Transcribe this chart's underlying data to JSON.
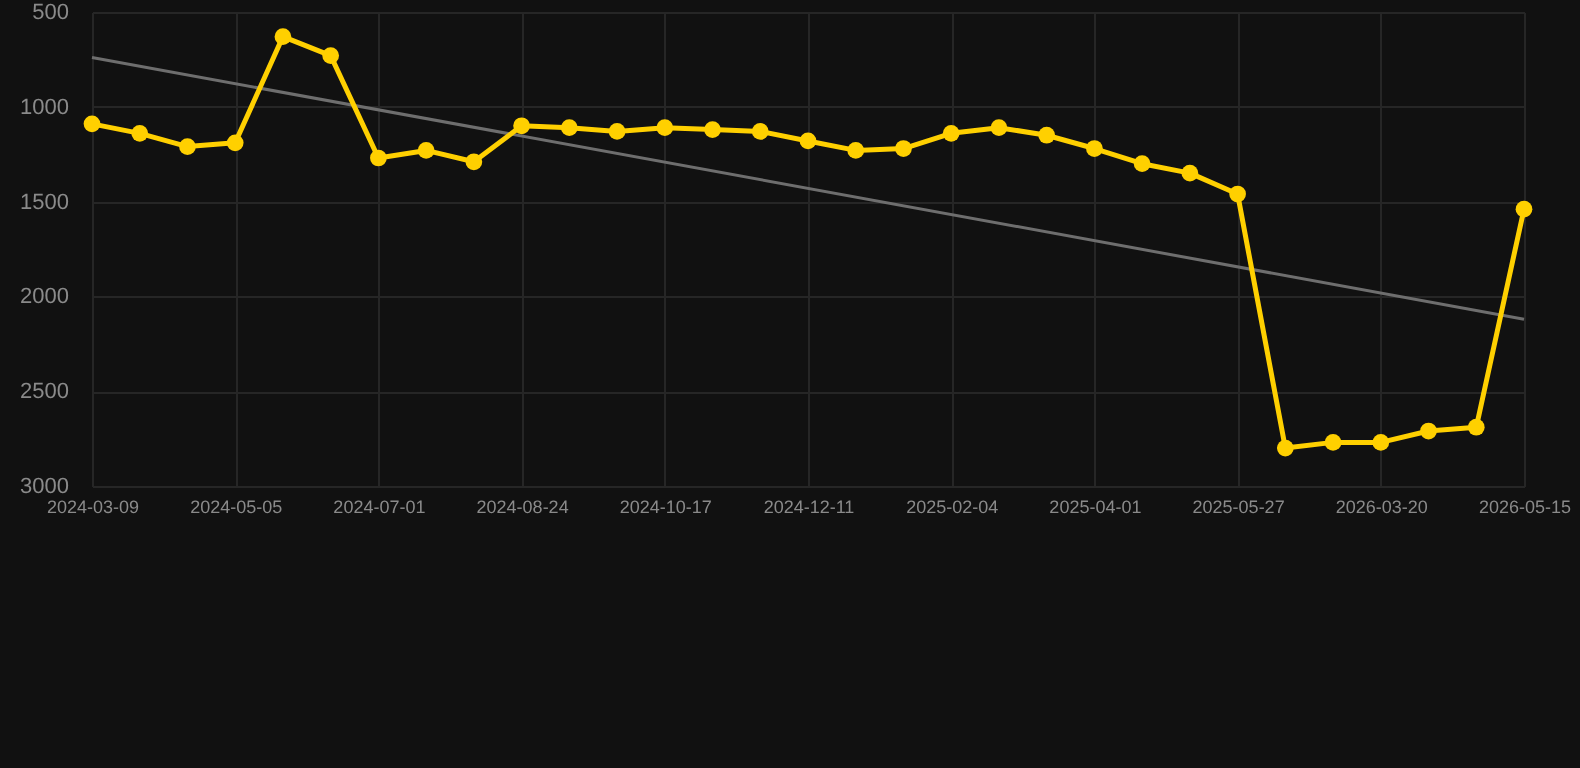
{
  "chart_data": {
    "type": "line",
    "categories": [
      "2024-03-09",
      null,
      null,
      "2024-05-05",
      null,
      null,
      "2024-07-01",
      null,
      null,
      "2024-08-24",
      null,
      null,
      "2024-10-17",
      null,
      null,
      "2024-12-11",
      null,
      null,
      "2025-02-04",
      null,
      null,
      "2025-04-01",
      null,
      null,
      "2025-05-27",
      null,
      null,
      "2026-03-20",
      null,
      null,
      "2026-05-15"
    ],
    "series": [
      {
        "color": "#ffd000",
        "marker": "circle",
        "values": [
          1090,
          1140,
          1210,
          1190,
          630,
          730,
          1270,
          1230,
          1290,
          1100,
          1110,
          1130,
          1110,
          1120,
          1130,
          1180,
          1230,
          1220,
          1140,
          1110,
          1150,
          1220,
          1300,
          1350,
          1460,
          2800,
          2770,
          2770,
          2710,
          2690,
          1540
        ]
      },
      {
        "type": "line",
        "color": "#6e6e6e",
        "marker": "none",
        "values": [
          740,
          null,
          null,
          null,
          null,
          null,
          null,
          null,
          null,
          null,
          null,
          null,
          null,
          null,
          null,
          null,
          null,
          null,
          null,
          null,
          null,
          null,
          null,
          null,
          null,
          null,
          null,
          null,
          null,
          null,
          2120
        ]
      }
    ],
    "ylim": [
      3000,
      500
    ],
    "yticks": [
      500,
      1000,
      1500,
      2000,
      2500,
      3000
    ],
    "grid": true
  }
}
